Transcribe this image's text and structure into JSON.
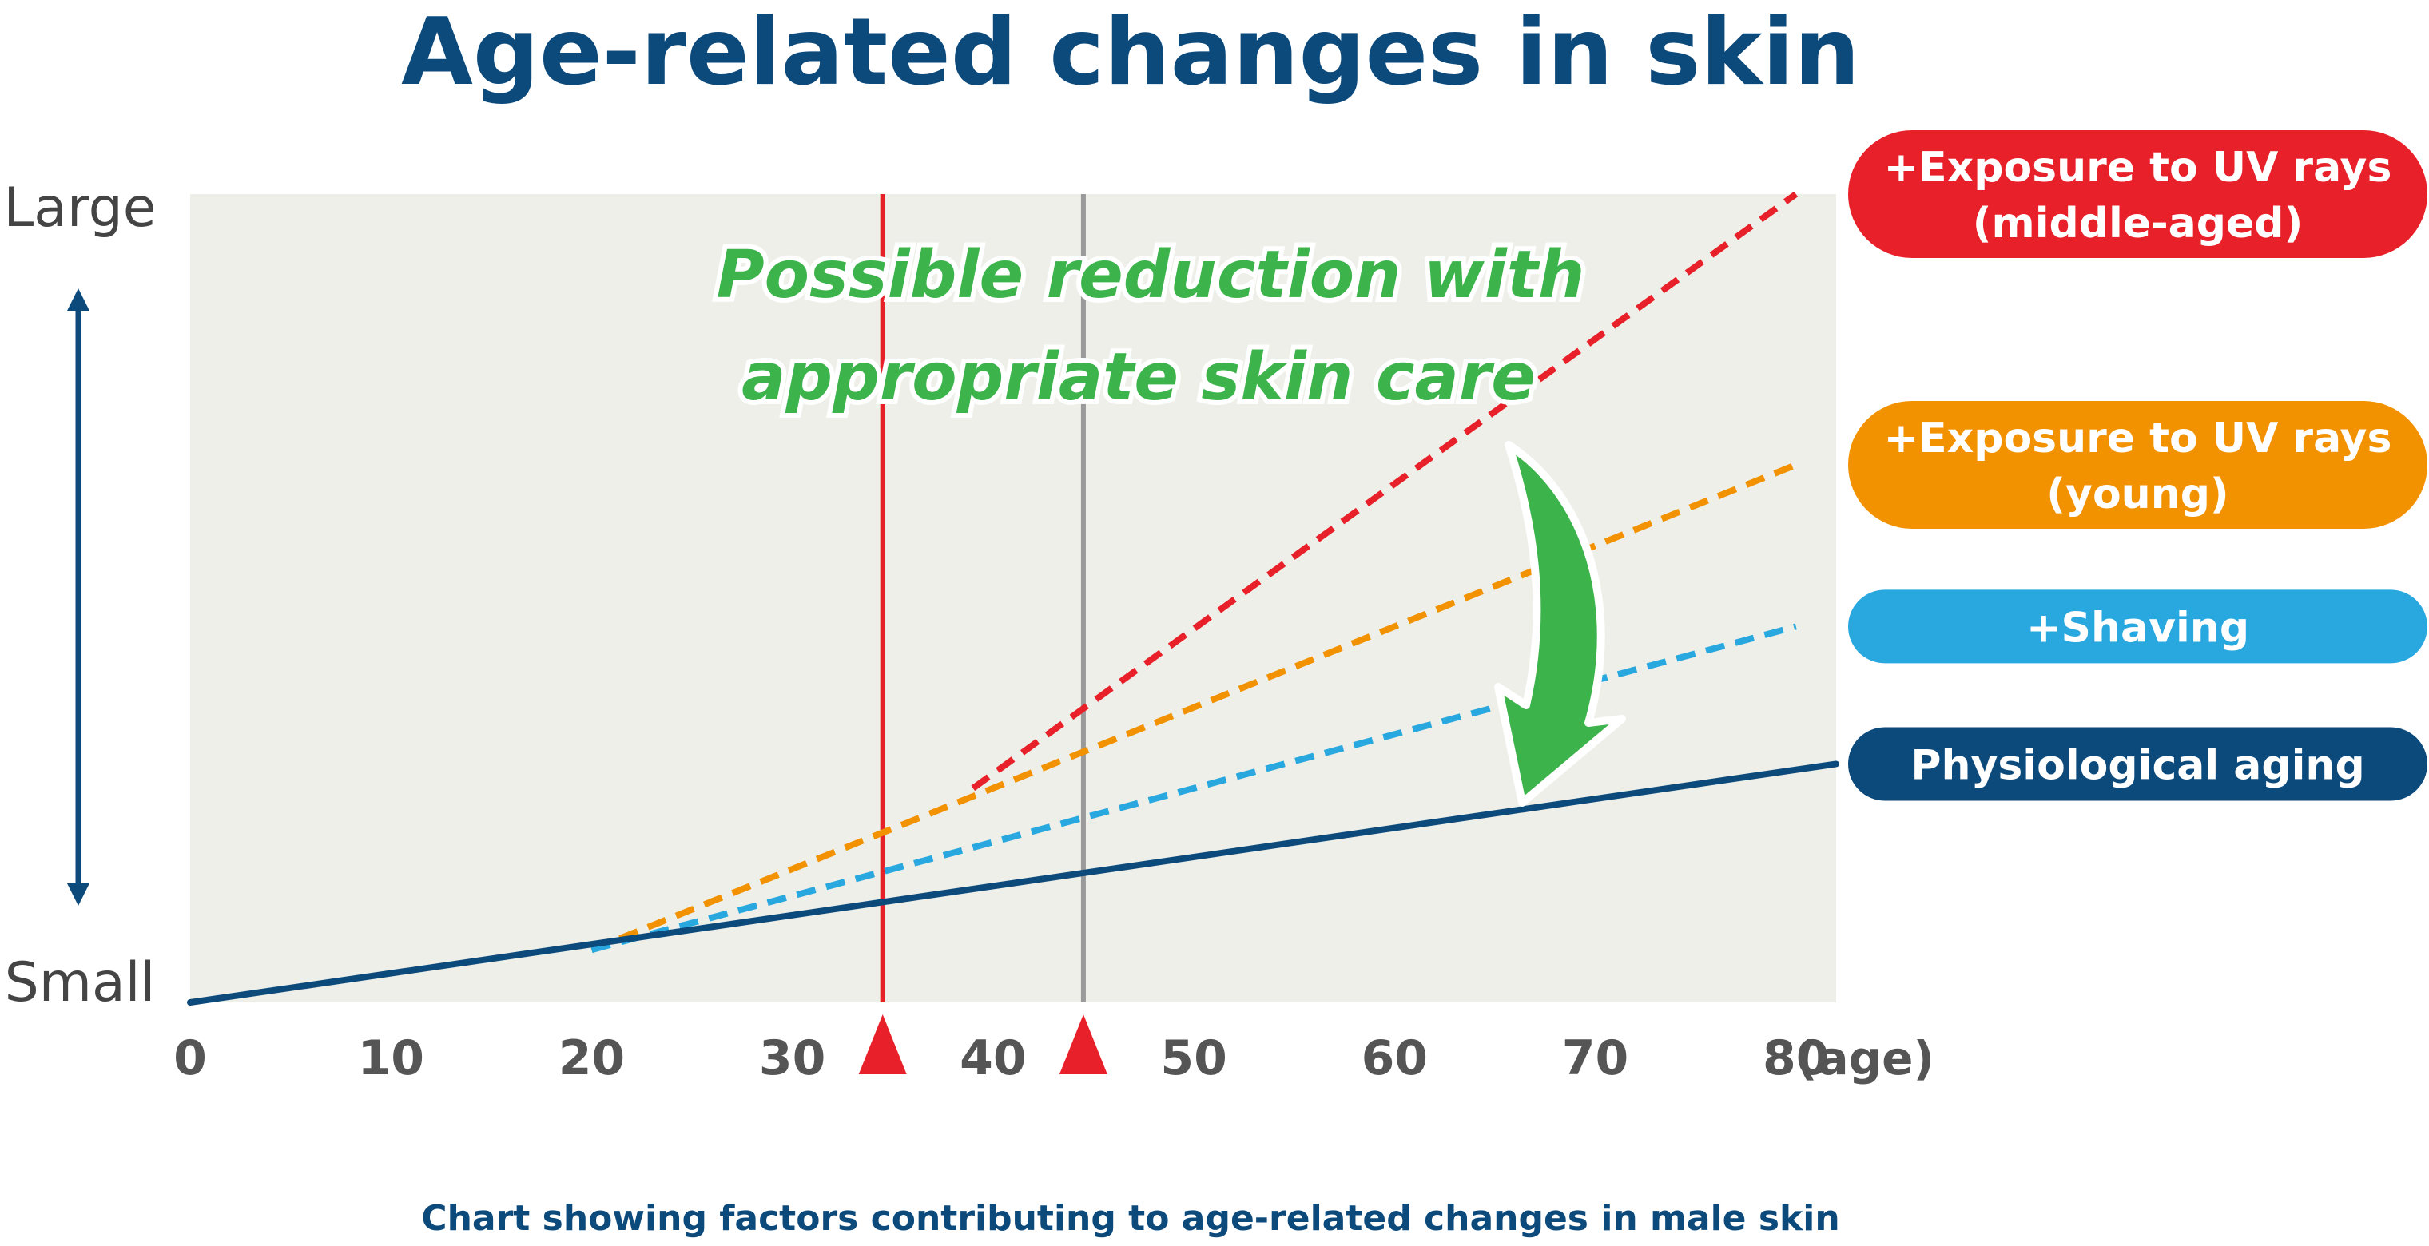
{
  "chart_data": {
    "type": "line",
    "title": "Age-related changes in skin",
    "caption": "Chart showing factors contributing to age-related changes in male skin",
    "x_unit_label": "(age)",
    "y_top_label": "Large",
    "y_bottom_label": "Small",
    "xlim": [
      0,
      82
    ],
    "ylim": [
      0,
      100
    ],
    "x_ticks": [
      0,
      10,
      20,
      30,
      40,
      50,
      60,
      70,
      80
    ],
    "annotation": [
      "Possible reduction with",
      "appropriate skin care"
    ],
    "markers": [
      {
        "age": 34.5,
        "color": "#e8202a"
      },
      {
        "age": 44.5,
        "color": "#9a9a9a"
      }
    ],
    "series": [
      {
        "name": [
          "+Exposure to UV rays",
          "(middle-aged)"
        ],
        "color": "#e8202a",
        "dashed": true,
        "x": [
          39,
          80
        ],
        "y": [
          26.5,
          100
        ]
      },
      {
        "name": [
          "+Exposure to UV rays",
          "(young)"
        ],
        "color": "#f39200",
        "dashed": true,
        "x": [
          20,
          80
        ],
        "y": [
          6.5,
          66.5
        ]
      },
      {
        "name": [
          "+Shaving"
        ],
        "color": "#29a8e0",
        "dashed": true,
        "x": [
          20,
          80
        ],
        "y": [
          6.5,
          46.5
        ]
      },
      {
        "name": [
          "Physiological aging"
        ],
        "color": "#0d4a7c",
        "dashed": false,
        "x": [
          0,
          82
        ],
        "y": [
          0,
          29.5
        ]
      }
    ]
  }
}
